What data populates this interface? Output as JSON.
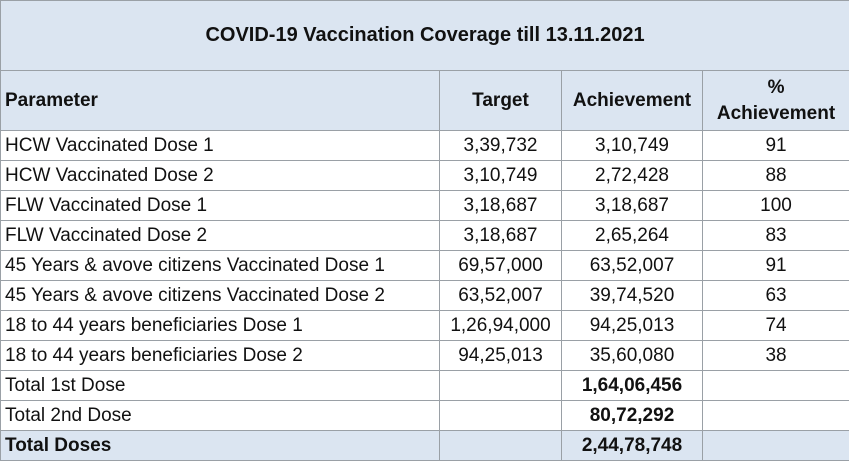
{
  "title": "COVID-19 Vaccination Coverage till 13.11.2021",
  "headers": {
    "parameter": "Parameter",
    "target": "Target",
    "achievement": "Achievement",
    "pct_line1": "%",
    "pct_line2": "Achievement"
  },
  "rows": [
    {
      "parameter": "HCW Vaccinated Dose 1",
      "target": "3,39,732",
      "achievement": "3,10,749",
      "pct": "91"
    },
    {
      "parameter": "HCW Vaccinated Dose 2",
      "target": "3,10,749",
      "achievement": "2,72,428",
      "pct": "88"
    },
    {
      "parameter": "FLW Vaccinated Dose 1",
      "target": "3,18,687",
      "achievement": "3,18,687",
      "pct": "100"
    },
    {
      "parameter": "FLW Vaccinated Dose 2",
      "target": "3,18,687",
      "achievement": "2,65,264",
      "pct": "83"
    },
    {
      "parameter": "45 Years & avove citizens Vaccinated Dose 1",
      "target": "69,57,000",
      "achievement": "63,52,007",
      "pct": "91"
    },
    {
      "parameter": "45 Years & avove citizens Vaccinated Dose 2",
      "target": "63,52,007",
      "achievement": "39,74,520",
      "pct": "63"
    },
    {
      "parameter": "18 to 44 years beneficiaries Dose 1",
      "target": "1,26,94,000",
      "achievement": "94,25,013",
      "pct": "74"
    },
    {
      "parameter": "18 to 44 years beneficiaries Dose 2",
      "target": "94,25,013",
      "achievement": "35,60,080",
      "pct": "38"
    }
  ],
  "totals": [
    {
      "parameter": "Total 1st Dose",
      "target": "",
      "achievement": "1,64,06,456",
      "pct": ""
    },
    {
      "parameter": "Total 2nd Dose",
      "target": "",
      "achievement": "80,72,292",
      "pct": ""
    }
  ],
  "grand_total": {
    "parameter": "Total Doses",
    "target": "",
    "achievement": "2,44,78,748",
    "pct": ""
  }
}
